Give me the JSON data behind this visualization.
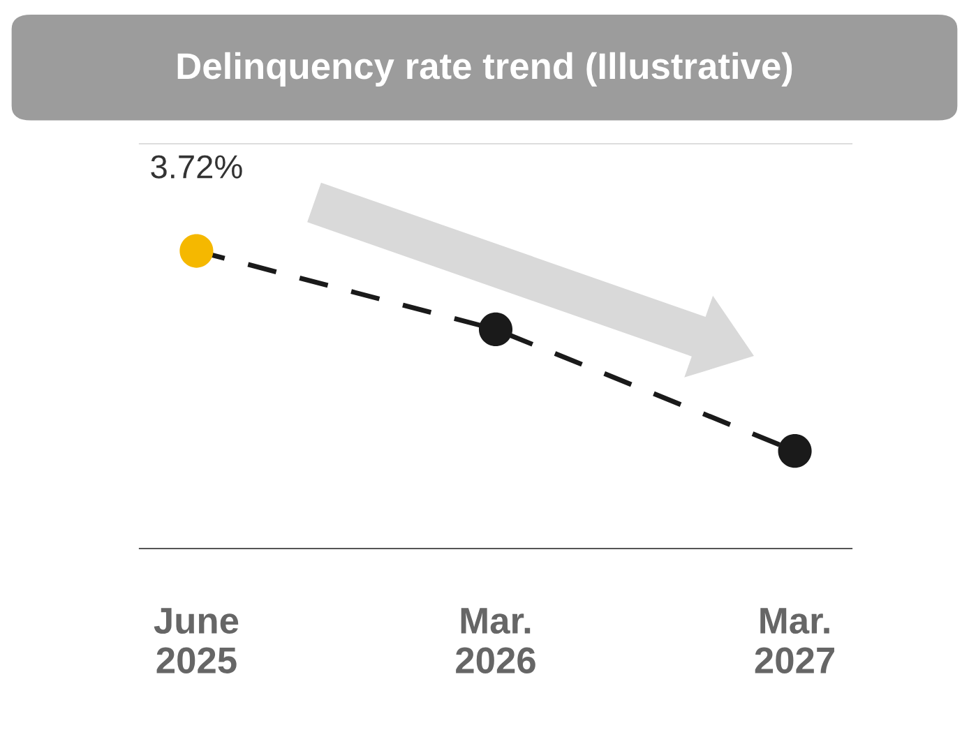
{
  "chart_data": {
    "type": "line",
    "title": "Delinquency rate trend (Illustrative)",
    "categories": [
      "June\n2025",
      "Mar.\n2026",
      "Mar.\n2027"
    ],
    "ylim": [
      0,
      5.06
    ],
    "series": [
      {
        "color": "#1a1a1a",
        "colors": [
          "#f5b800",
          "#1a1a1a",
          "#1a1a1a"
        ],
        "values": [
          3.72,
          2.74,
          1.22
        ],
        "value_labels": [
          "3.72%",
          null,
          null
        ]
      }
    ],
    "marker": "circle",
    "line_style": "dashed",
    "grid": false,
    "legend": false
  }
}
